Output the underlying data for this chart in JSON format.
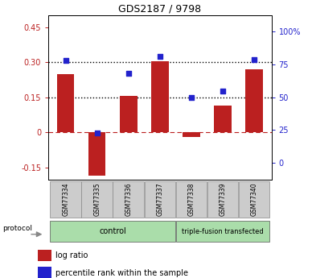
{
  "title": "GDS2187 / 9798",
  "samples": [
    "GSM77334",
    "GSM77335",
    "GSM77336",
    "GSM77337",
    "GSM77338",
    "GSM77339",
    "GSM77340"
  ],
  "log_ratio": [
    0.25,
    -0.185,
    0.155,
    0.305,
    -0.02,
    0.115,
    0.27
  ],
  "percentile_rank_pct": [
    78,
    23,
    68,
    81,
    50,
    55,
    79
  ],
  "ylim_left": [
    -0.2,
    0.5
  ],
  "ylim_right": [
    -12.5,
    112.5
  ],
  "yticks_left": [
    -0.15,
    0.0,
    0.15,
    0.3,
    0.45
  ],
  "yticks_right": [
    0,
    25,
    50,
    75,
    100
  ],
  "ytick_labels_left": [
    "-0.15",
    "0",
    "0.15",
    "0.30",
    "0.45"
  ],
  "ytick_labels_right": [
    "0",
    "25",
    "50",
    "75",
    "100%"
  ],
  "hlines_black": [
    0.15,
    0.3
  ],
  "hline_red": 0.0,
  "bar_color": "#bb2020",
  "dot_color": "#2222cc",
  "control_label": "control",
  "triple_label": "triple-fusion transfected",
  "protocol_label": "protocol",
  "legend_log_ratio": "log ratio",
  "legend_percentile": "percentile rank within the sample",
  "control_color": "#aaddaa",
  "triple_color": "#aaddaa",
  "sample_box_color": "#cccccc",
  "bar_width": 0.55
}
